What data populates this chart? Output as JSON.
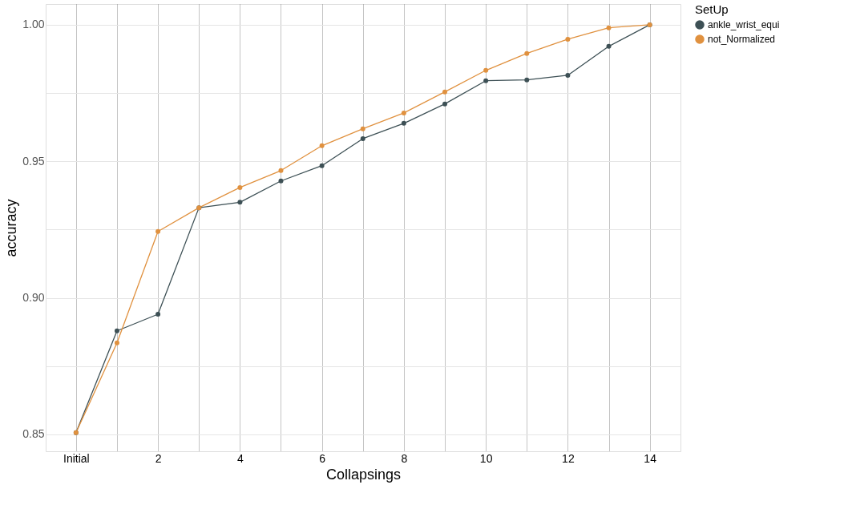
{
  "chart_data": {
    "type": "line",
    "xlabel": "Collapsings",
    "ylabel": "accuracy",
    "legend_title": "SetUp",
    "legend": "right",
    "grid": true,
    "marker": "circle",
    "line_style": "solid",
    "x": [
      0,
      1,
      2,
      3,
      4,
      5,
      6,
      7,
      8,
      9,
      10,
      11,
      12,
      13,
      14
    ],
    "xlim": [
      -0.74,
      14.75
    ],
    "xticks": [
      {
        "value": 0,
        "label": "Initial"
      },
      {
        "value": 1,
        "label": null
      },
      2,
      {
        "value": 3,
        "label": null
      },
      4,
      {
        "value": 5,
        "label": null
      },
      6,
      {
        "value": 7,
        "label": null
      },
      8,
      {
        "value": 9,
        "label": null
      },
      10,
      {
        "value": 11,
        "label": null
      },
      12,
      {
        "value": 13,
        "label": null
      },
      14
    ],
    "ylim": [
      0.8438,
      1.0076
    ],
    "yticks": [
      {
        "value": 0.85,
        "label": "0.85"
      },
      {
        "value": 0.875,
        "label": null
      },
      {
        "value": 0.9,
        "label": "0.90"
      },
      {
        "value": 0.925,
        "label": null
      },
      {
        "value": 0.95,
        "label": "0.95"
      },
      {
        "value": 0.975,
        "label": null
      },
      {
        "value": 1.0,
        "label": "1.00"
      }
    ],
    "series": [
      {
        "name": "ankle_wrist_equi",
        "color": "#3d5055",
        "values": [
          0.8506,
          0.8879,
          0.894,
          0.933,
          0.935,
          0.9428,
          0.9484,
          0.9583,
          0.9639,
          0.971,
          0.9795,
          0.9798,
          0.9815,
          0.9921,
          1.0
        ]
      },
      {
        "name": "not_Normalized",
        "color": "#e0913f",
        "values": [
          0.8506,
          0.8835,
          0.9243,
          0.933,
          0.9404,
          0.9466,
          0.9557,
          0.9619,
          0.9677,
          0.9754,
          0.9833,
          0.9895,
          0.9947,
          0.9989,
          1.0
        ]
      }
    ]
  }
}
